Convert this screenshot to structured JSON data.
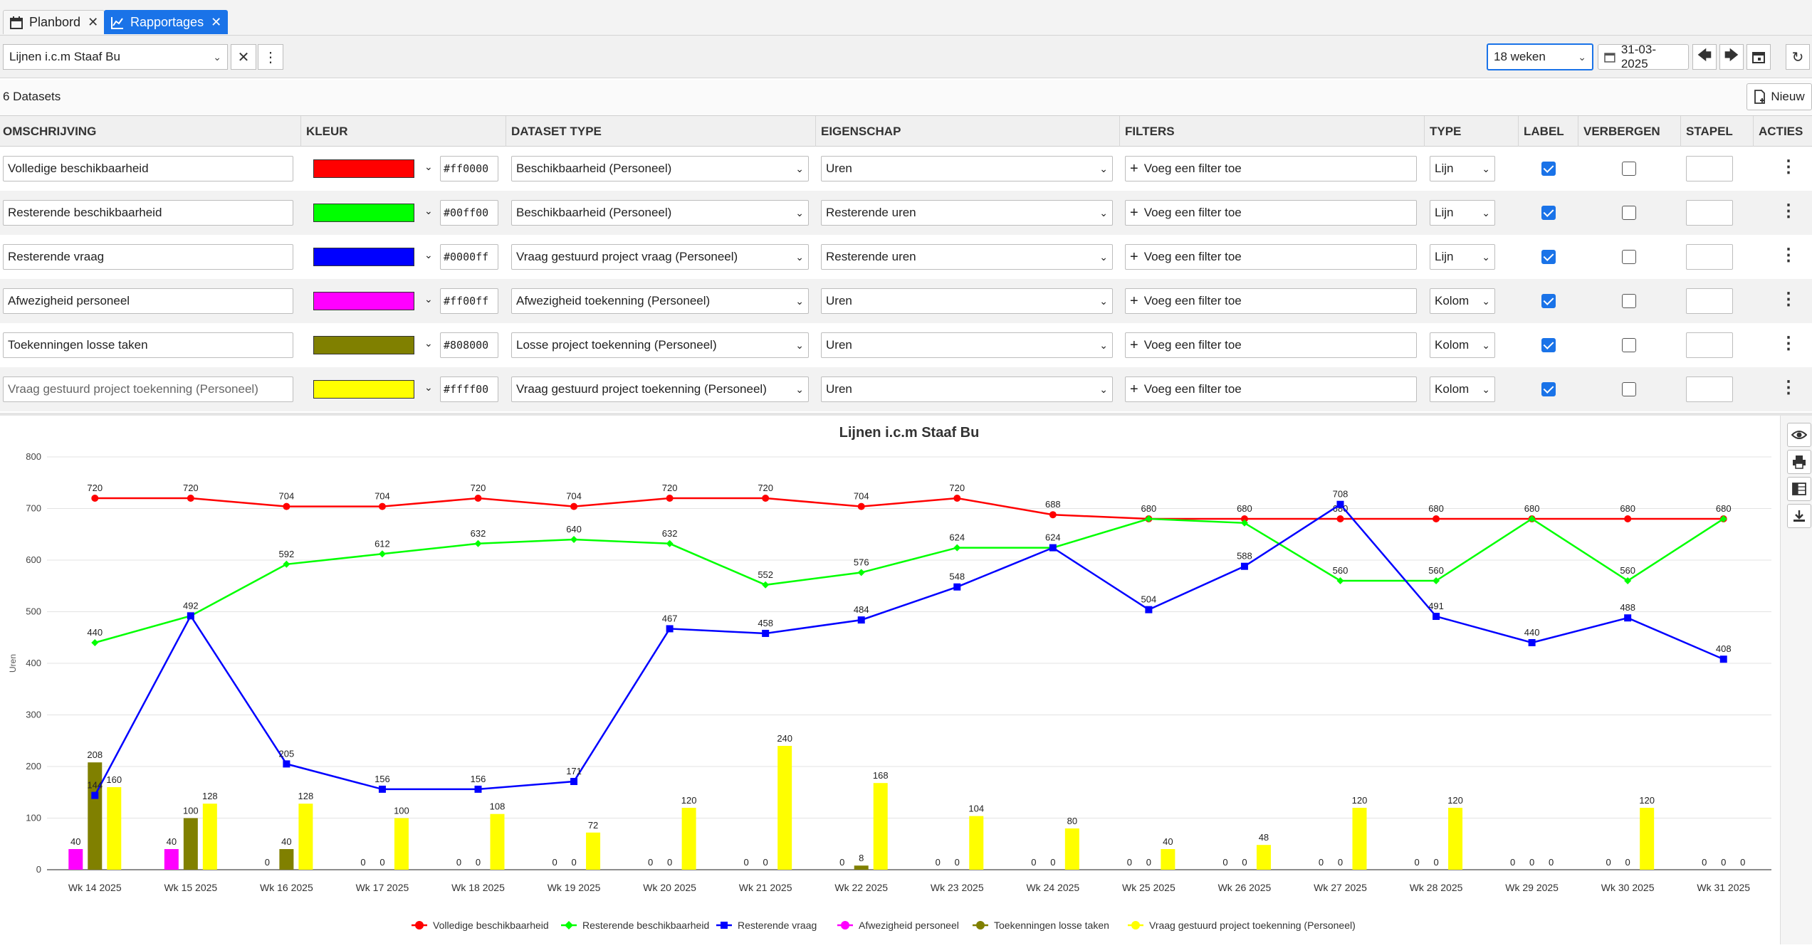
{
  "tabs": [
    {
      "label": "Planbord",
      "icon": "calendar-icon",
      "active": false
    },
    {
      "label": "Rapportages",
      "icon": "chart-line-icon",
      "active": true
    }
  ],
  "toolbar": {
    "report_select": "Lijnen i.c.m Staaf Bu",
    "weeks_select": "18 weken",
    "date_value": "31-03-2025"
  },
  "datasets": {
    "count_label": "6 Datasets",
    "new_label": "Nieuw",
    "columns": [
      "OMSCHRIJVING",
      "KLEUR",
      "DATASET TYPE",
      "EIGENSCHAP",
      "FILTERS",
      "TYPE",
      "LABEL",
      "VERBERGEN",
      "STAPEL",
      "ACTIES"
    ],
    "filter_label": "Voeg een filter toe",
    "rows": [
      {
        "name": "Volledige beschikbaarheid",
        "placeholder": false,
        "color": "#ff0000",
        "hex": "#ff0000",
        "dataset_type": "Beschikbaarheid (Personeel)",
        "property": "Uren",
        "type": "Lijn",
        "label": true,
        "hide": false
      },
      {
        "name": "Resterende beschikbaarheid",
        "placeholder": false,
        "color": "#00ff00",
        "hex": "#00ff00",
        "dataset_type": "Beschikbaarheid (Personeel)",
        "property": "Resterende uren",
        "type": "Lijn",
        "label": true,
        "hide": false
      },
      {
        "name": "Resterende vraag",
        "placeholder": false,
        "color": "#0000ff",
        "hex": "#0000ff",
        "dataset_type": "Vraag gestuurd project vraag (Personeel)",
        "property": "Resterende uren",
        "type": "Lijn",
        "label": true,
        "hide": false
      },
      {
        "name": "Afwezigheid personeel",
        "placeholder": false,
        "color": "#ff00ff",
        "hex": "#ff00ff",
        "dataset_type": "Afwezigheid toekenning (Personeel)",
        "property": "Uren",
        "type": "Kolom",
        "label": true,
        "hide": false
      },
      {
        "name": "Toekenningen losse taken",
        "placeholder": false,
        "color": "#808000",
        "hex": "#808000",
        "dataset_type": "Losse project toekenning (Personeel)",
        "property": "Uren",
        "type": "Kolom",
        "label": true,
        "hide": false
      },
      {
        "name": "Vraag gestuurd project toekenning (Personeel)",
        "placeholder": true,
        "color": "#ffff00",
        "hex": "#ffff00",
        "dataset_type": "Vraag gestuurd project toekenning (Personeel)",
        "property": "Uren",
        "type": "Kolom",
        "label": true,
        "hide": false
      }
    ]
  },
  "chart_data": {
    "type": "line",
    "title": "Lijnen i.c.m Staaf Bu",
    "ylabel": "Uren",
    "xlabel": "",
    "ylim": [
      0,
      800
    ],
    "yticks": [
      0,
      100,
      200,
      300,
      400,
      500,
      600,
      700,
      800
    ],
    "grid": true,
    "legend_position": "bottom",
    "categories": [
      "Wk 14 2025",
      "Wk 15 2025",
      "Wk 16 2025",
      "Wk 17 2025",
      "Wk 18 2025",
      "Wk 19 2025",
      "Wk 20 2025",
      "Wk 21 2025",
      "Wk 22 2025",
      "Wk 23 2025",
      "Wk 24 2025",
      "Wk 25 2025",
      "Wk 26 2025",
      "Wk 27 2025",
      "Wk 28 2025",
      "Wk 29 2025",
      "Wk 30 2025",
      "Wk 31 2025"
    ],
    "series": [
      {
        "name": "Volledige beschikbaarheid",
        "kind": "line",
        "marker": "circle",
        "color": "#ff0000",
        "values": [
          720,
          720,
          704,
          704,
          720,
          704,
          720,
          720,
          704,
          720,
          688,
          680,
          680,
          680,
          680,
          680,
          680,
          680
        ]
      },
      {
        "name": "Resterende beschikbaarheid",
        "kind": "line",
        "marker": "diamond",
        "color": "#00ff00",
        "values": [
          440,
          492,
          592,
          612,
          632,
          640,
          632,
          552,
          576,
          624,
          624,
          680,
          672,
          560,
          560,
          680,
          560,
          680
        ]
      },
      {
        "name": "Resterende vraag",
        "kind": "line",
        "marker": "square",
        "color": "#0000ff",
        "values": [
          144,
          492,
          205,
          156,
          156,
          171,
          467,
          458,
          484,
          548,
          624,
          504,
          588,
          708,
          491,
          440,
          488,
          408
        ]
      },
      {
        "name": "Afwezigheid personeel",
        "kind": "bar",
        "marker": "circle",
        "color": "#ff00ff",
        "values": [
          40,
          40,
          0,
          0,
          0,
          0,
          0,
          0,
          0,
          0,
          0,
          0,
          0,
          0,
          0,
          0,
          0,
          0
        ]
      },
      {
        "name": "Toekenningen losse taken",
        "kind": "bar",
        "marker": "circle",
        "color": "#808000",
        "values": [
          208,
          100,
          40,
          0,
          0,
          0,
          0,
          0,
          8,
          0,
          0,
          0,
          0,
          0,
          0,
          0,
          0,
          0
        ]
      },
      {
        "name": "Vraag gestuurd project toekenning (Personeel)",
        "kind": "bar",
        "marker": "circle",
        "color": "#ffff00",
        "values": [
          160,
          128,
          128,
          100,
          108,
          72,
          120,
          240,
          168,
          104,
          80,
          40,
          48,
          120,
          120,
          0,
          120,
          0
        ]
      }
    ],
    "line_labels": [
      [
        "720",
        "720",
        "704",
        "704",
        "720",
        "704",
        "720",
        "720",
        "704",
        "720",
        "688",
        "680",
        "680",
        "680",
        "680",
        "680",
        "680",
        "680"
      ],
      [
        "440",
        "",
        "592",
        "612",
        "632",
        "640",
        "632",
        "552",
        "576",
        "624",
        "624",
        "",
        "",
        "560",
        "560",
        "",
        "560",
        ""
      ],
      [
        "144",
        "492",
        "205",
        "156",
        "156",
        "171",
        "467",
        "458",
        "484",
        "548",
        "",
        "504",
        "588",
        "708",
        "491",
        "440",
        "488",
        "408"
      ]
    ]
  },
  "side_tools": [
    "eye-icon",
    "print-icon",
    "excel-icon",
    "download-icon"
  ]
}
